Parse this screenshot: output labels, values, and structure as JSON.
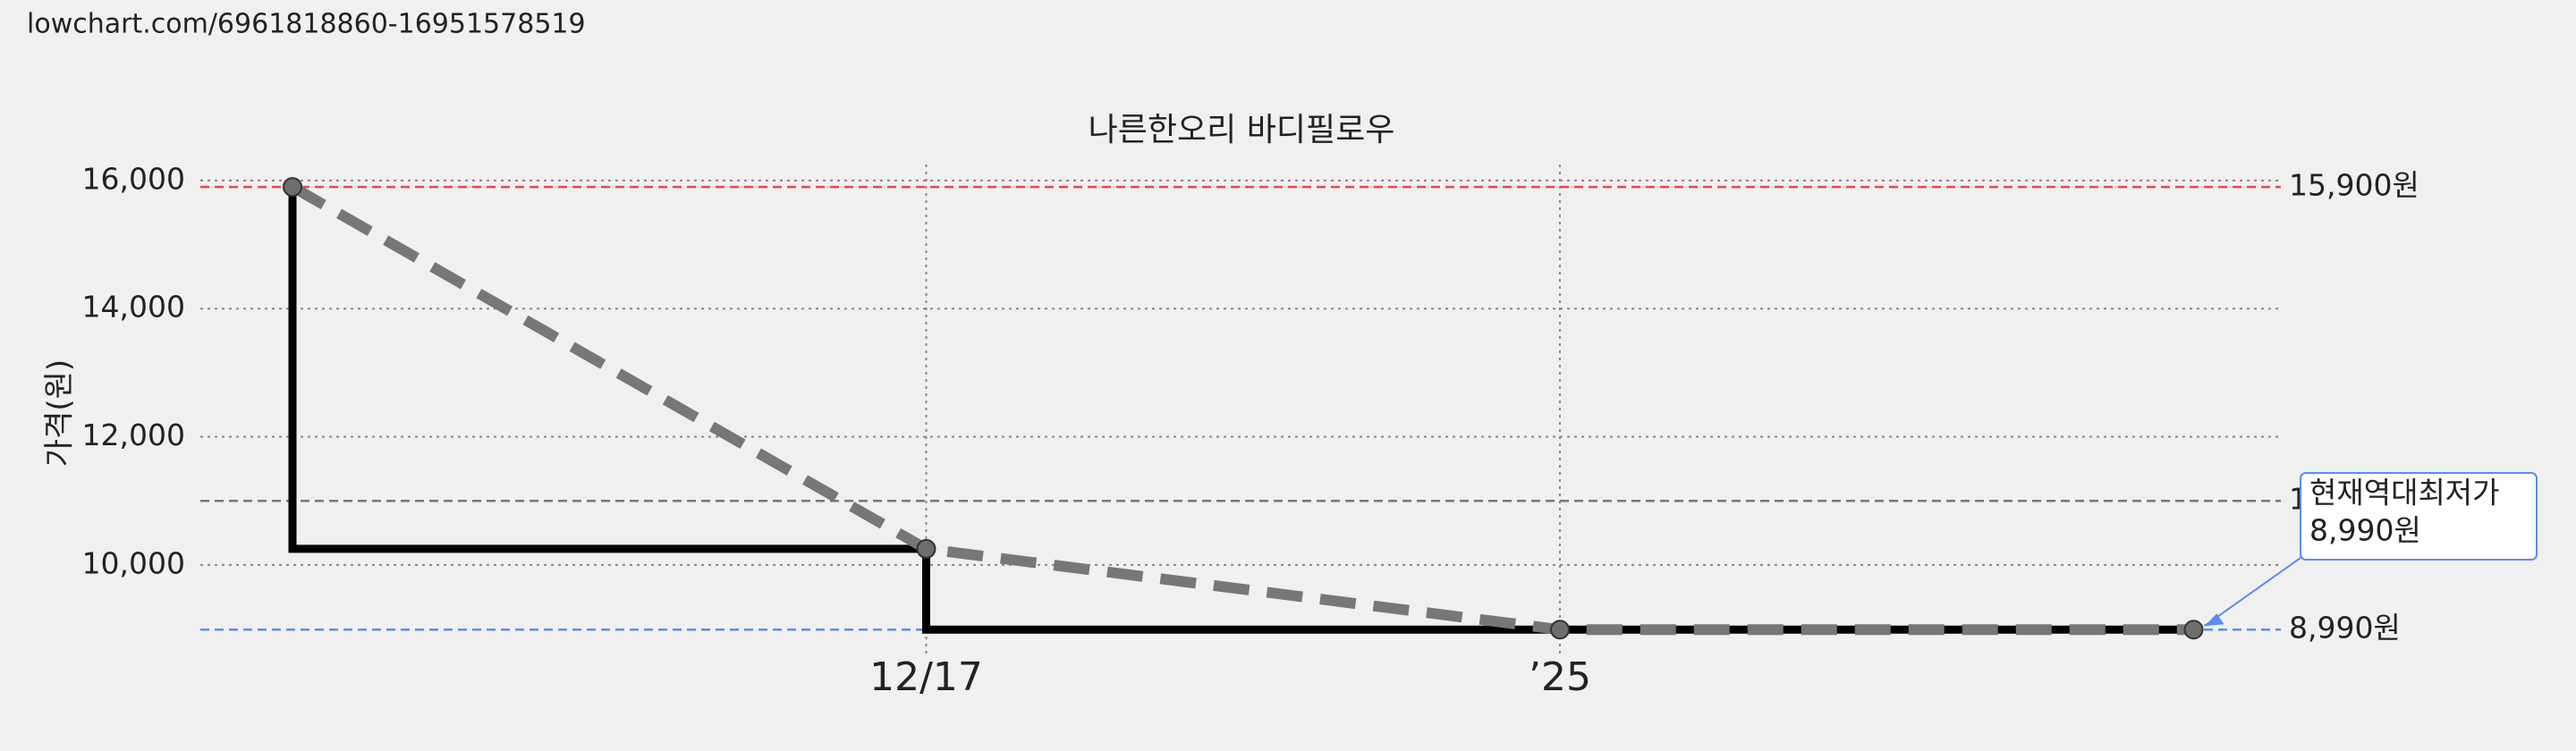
{
  "header": {
    "url": "lowchart.com/6961818860-16951578519"
  },
  "chart_data": {
    "type": "line",
    "title": "나른한오리 바디필로우",
    "y_label": "가격(원)",
    "categories": [
      null,
      "12/17",
      "’25",
      null
    ],
    "values": [
      15900,
      10250,
      8990,
      8990
    ],
    "line_color": "#777777",
    "step": "before",
    "step_color": "#000000",
    "marker_color": "#6e6e6e",
    "ylim": [
      8700,
      16250
    ],
    "yticks": [
      {
        "value": 10000,
        "label": "10,000"
      },
      {
        "value": 12000,
        "label": "12,000"
      },
      {
        "value": 14000,
        "label": "14,000"
      },
      {
        "value": 16000,
        "label": "16,000"
      }
    ],
    "grid": true,
    "reference_lines": [
      {
        "value": 15900,
        "label": "15,900원",
        "color": "#e8474a"
      },
      {
        "value": 11000,
        "label": "1",
        "color": "#777777"
      },
      {
        "value": 8990,
        "label": "8,990원",
        "color": "#5b8def"
      }
    ],
    "annotation": {
      "lines": [
        "현재역대최저가",
        "8,990원"
      ],
      "color": "#5b8def"
    }
  }
}
